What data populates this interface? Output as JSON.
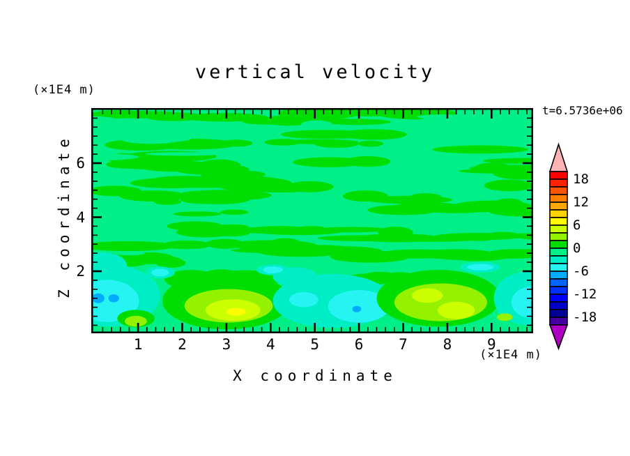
{
  "title": "vertical velocity",
  "timestamp": "t=6.5736e+06",
  "axes": {
    "x": {
      "label": "X coordinate",
      "unit": "(×1E4 m)",
      "tick_labels": [
        "1",
        "2",
        "3",
        "4",
        "5",
        "6",
        "7",
        "8",
        "9"
      ],
      "min": 0,
      "max": 10,
      "major_step": 1,
      "minor_step": 0.2
    },
    "y": {
      "label": "Z coordinate",
      "unit": "(×1E4 m)",
      "tick_labels": [
        "6",
        "4",
        "2"
      ],
      "major_ticks": [
        6,
        4,
        2
      ],
      "minor_step": 0.3333
    }
  },
  "colorbar": {
    "labels": [
      "18",
      "12",
      "6",
      "0",
      "-6",
      "-12",
      "-18"
    ],
    "boundary_index": [
      1,
      4,
      7,
      10,
      13,
      16,
      19
    ],
    "level_max": 20,
    "level_min": -20,
    "level_step": 2,
    "over_color": "#ffb2b4",
    "under_color": "#ad00c3",
    "segment_colors": [
      "#ff0000",
      "#ff2300",
      "#ff5400",
      "#ff7f00",
      "#ffa800",
      "#ffd300",
      "#fffb00",
      "#ccff00",
      "#94f100",
      "#00dd00",
      "#00ef87",
      "#00eec6",
      "#26f4f2",
      "#00acff",
      "#0064ff",
      "#0032ff",
      "#0000ff",
      "#0000c8",
      "#000096",
      "#4600a0"
    ]
  },
  "chart_data": {
    "type": "filled_contour",
    "title": "vertical velocity",
    "time": "t=6.5736e+06",
    "xlabel": "X coordinate (×1E4 m)",
    "ylabel": "Z coordinate (×1E4 m)",
    "x_range": [
      0,
      10
    ],
    "z_range": [
      0,
      8
    ],
    "contour_interval": 2,
    "value_range_shown": [
      -20,
      20
    ],
    "background_color": "#00ef87",
    "background_band": "-2..0",
    "streaks": {
      "description": "horizontal turbulent streaks of band 0..2 over band -2..0 background",
      "band": "0..2",
      "color": "#00dd00",
      "hole_color": "#00ef87",
      "count": 58,
      "holes": 16,
      "seed": 7,
      "z_extent": [
        1.6,
        8
      ]
    },
    "features": [
      {
        "name": "downdraft-left-edge",
        "kind": "downdraft",
        "x": 0.3,
        "z": 0.9,
        "min_value": -7,
        "rings": [
          {
            "band": "-4..-2",
            "color": "#00eec6",
            "cx": 0.35,
            "cz": 1.1,
            "rx": 1.15,
            "ry": 1.15
          },
          {
            "band": "-4..-2",
            "color": "#00eec6",
            "cx": 0.2,
            "cz": 2.2,
            "rx": 0.55,
            "ry": 0.5
          },
          {
            "band": "-6..-4",
            "color": "#26f4f2",
            "cx": 0.3,
            "cz": 0.9,
            "rx": 0.72,
            "ry": 0.78
          },
          {
            "band": "-8..-6",
            "color": "#00acff",
            "cx": 0.1,
            "cz": 1.0,
            "rx": 0.14,
            "ry": 0.18
          },
          {
            "band": "-8..-6",
            "color": "#00acff",
            "cx": 0.45,
            "cz": 1.0,
            "rx": 0.12,
            "ry": 0.15
          }
        ]
      },
      {
        "name": "updraft-spot-left",
        "kind": "updraft",
        "x": 0.95,
        "z": 0.2,
        "max_value": 3,
        "rings": [
          {
            "band": "0..2",
            "color": "#00dd00",
            "cx": 0.95,
            "cz": 0.25,
            "rx": 0.42,
            "ry": 0.32
          },
          {
            "band": "2..4",
            "color": "#94f100",
            "cx": 0.95,
            "cz": 0.15,
            "rx": 0.25,
            "ry": 0.2
          }
        ]
      },
      {
        "name": "updraft-main",
        "kind": "updraft",
        "x": 3.2,
        "z": 0.5,
        "max_value": 7,
        "rings": [
          {
            "band": "0..2",
            "color": "#00dd00",
            "cx": 3.0,
            "cz": 0.9,
            "rx": 1.45,
            "ry": 1.05
          },
          {
            "band": "0..2",
            "color": "#00dd00",
            "cx": 2.2,
            "cz": 1.7,
            "rx": 0.6,
            "ry": 0.35
          },
          {
            "band": "2..4",
            "color": "#94f100",
            "cx": 3.05,
            "cz": 0.72,
            "rx": 1.0,
            "ry": 0.62
          },
          {
            "band": "4..6",
            "color": "#ccff00",
            "cx": 3.15,
            "cz": 0.56,
            "rx": 0.62,
            "ry": 0.4
          },
          {
            "band": "6..8",
            "color": "#fffb00",
            "cx": 3.22,
            "cz": 0.5,
            "rx": 0.22,
            "ry": 0.14
          }
        ]
      },
      {
        "name": "downdraft-mid",
        "kind": "downdraft",
        "x": 6.0,
        "z": 0.6,
        "min_value": -7,
        "rings": [
          {
            "band": "-4..-2",
            "color": "#00eec6",
            "cx": 5.4,
            "cz": 0.9,
            "rx": 1.35,
            "ry": 1.0
          },
          {
            "band": "-4..-2",
            "color": "#00eec6",
            "cx": 4.55,
            "cz": 1.8,
            "rx": 0.5,
            "ry": 0.35
          },
          {
            "band": "-6..-4",
            "color": "#26f4f2",
            "cx": 6.0,
            "cz": 0.7,
            "rx": 0.7,
            "ry": 0.6
          },
          {
            "band": "-6..-4",
            "color": "#26f4f2",
            "cx": 4.75,
            "cz": 0.95,
            "rx": 0.33,
            "ry": 0.28
          },
          {
            "band": "-8..-6",
            "color": "#00acff",
            "cx": 5.95,
            "cz": 0.6,
            "rx": 0.1,
            "ry": 0.12
          }
        ]
      },
      {
        "name": "updraft-right",
        "kind": "updraft",
        "x": 7.9,
        "z": 0.8,
        "max_value": 5,
        "rings": [
          {
            "band": "0..2",
            "color": "#00dd00",
            "cx": 7.8,
            "cz": 1.0,
            "rx": 1.4,
            "ry": 1.05
          },
          {
            "band": "2..4",
            "color": "#94f100",
            "cx": 7.85,
            "cz": 0.85,
            "rx": 1.05,
            "ry": 0.7
          },
          {
            "band": "4..6",
            "color": "#ccff00",
            "cx": 7.55,
            "cz": 1.1,
            "rx": 0.35,
            "ry": 0.27
          },
          {
            "band": "4..6",
            "color": "#ccff00",
            "cx": 8.2,
            "cz": 0.55,
            "rx": 0.42,
            "ry": 0.32
          }
        ]
      },
      {
        "name": "downdraft-right-edge",
        "kind": "downdraft",
        "x": 9.9,
        "z": 0.9,
        "min_value": -5,
        "rings": [
          {
            "band": "-4..-2",
            "color": "#00eec6",
            "cx": 9.85,
            "cz": 1.0,
            "rx": 0.8,
            "ry": 1.0
          },
          {
            "band": "-6..-4",
            "color": "#26f4f2",
            "cx": 9.95,
            "cz": 0.85,
            "rx": 0.5,
            "ry": 0.6
          },
          {
            "band": "2..4",
            "color": "#94f100",
            "cx": 9.3,
            "cz": 0.3,
            "rx": 0.18,
            "ry": 0.14
          }
        ]
      },
      {
        "name": "cyan-dot-1",
        "kind": "downdraft",
        "x": 1.5,
        "z": 1.95,
        "min_value": -5,
        "rings": [
          {
            "band": "-4..-2",
            "color": "#00eec6",
            "cx": 1.5,
            "cz": 1.95,
            "rx": 0.33,
            "ry": 0.22
          },
          {
            "band": "-6..-4",
            "color": "#26f4f2",
            "cx": 1.5,
            "cz": 1.95,
            "rx": 0.2,
            "ry": 0.14
          }
        ]
      },
      {
        "name": "cyan-dot-2",
        "kind": "downdraft",
        "x": 4.05,
        "z": 2.05,
        "min_value": -5,
        "rings": [
          {
            "band": "-4..-2",
            "color": "#00eec6",
            "cx": 4.05,
            "cz": 2.05,
            "rx": 0.37,
            "ry": 0.2
          },
          {
            "band": "-6..-4",
            "color": "#26f4f2",
            "cx": 4.05,
            "cz": 2.05,
            "rx": 0.22,
            "ry": 0.13
          }
        ]
      },
      {
        "name": "cyan-dot-3",
        "kind": "downdraft",
        "x": 8.75,
        "z": 2.15,
        "min_value": -5,
        "rings": [
          {
            "band": "-4..-2",
            "color": "#00eec6",
            "cx": 8.75,
            "cz": 2.15,
            "rx": 0.45,
            "ry": 0.2
          },
          {
            "band": "-6..-4",
            "color": "#26f4f2",
            "cx": 8.75,
            "cz": 2.15,
            "rx": 0.3,
            "ry": 0.12
          }
        ]
      }
    ]
  }
}
